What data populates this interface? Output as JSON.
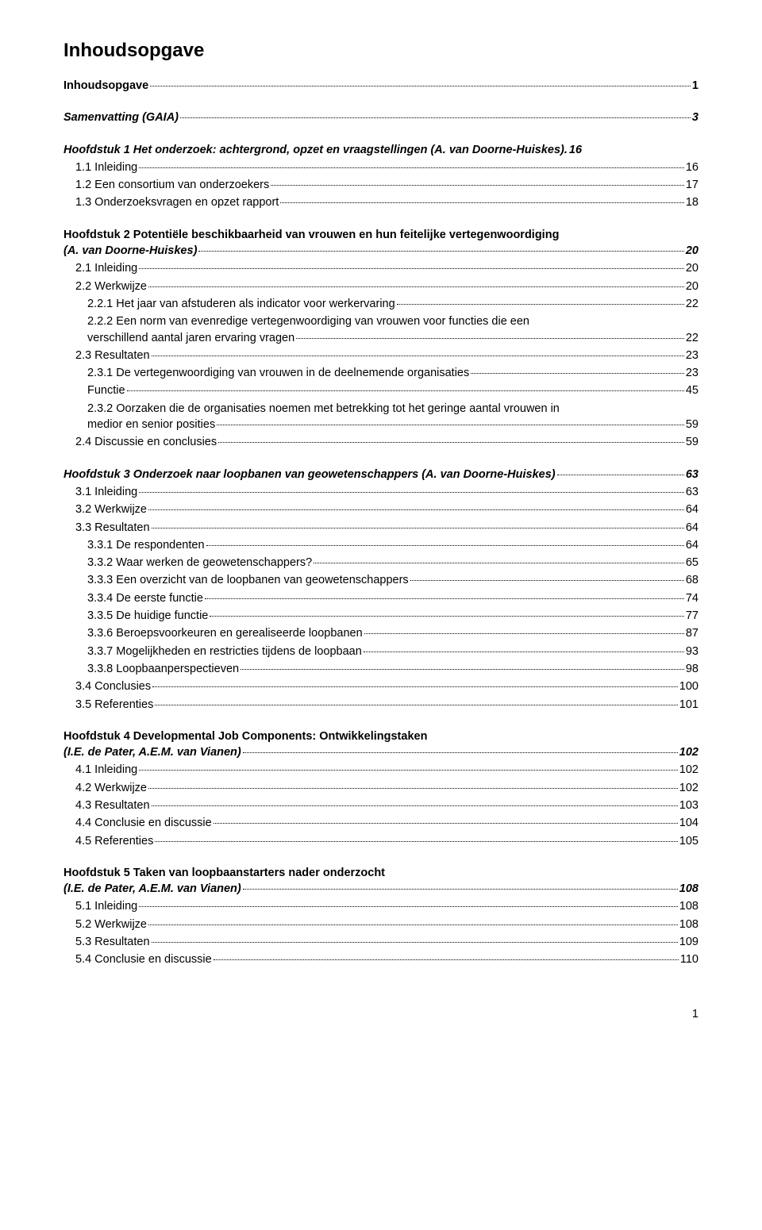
{
  "title": "Inhoudsopgave",
  "entries": [
    {
      "type": "line",
      "text": "Inhoudsopgave",
      "page": "1",
      "bold": true,
      "indent": 0
    },
    {
      "type": "gap"
    },
    {
      "type": "line",
      "text": "Samenvatting (GAIA)",
      "page": "3",
      "bold": true,
      "italic": true,
      "indent": 0
    },
    {
      "type": "gap"
    },
    {
      "type": "line",
      "text": "Hoofdstuk 1  Het onderzoek: achtergrond, opzet en vraagstellingen (A. van Doorne-Huiskes).",
      "page": "16",
      "bold": true,
      "italic": true,
      "indent": 0,
      "nodots": true
    },
    {
      "type": "line",
      "text": "1.1 Inleiding",
      "page": "16",
      "indent": 1
    },
    {
      "type": "line",
      "text": "1.2 Een consortium van onderzoekers",
      "page": "17",
      "indent": 1
    },
    {
      "type": "line",
      "text": "1.3 Onderzoeksvragen en opzet rapport",
      "page": "18",
      "indent": 1
    },
    {
      "type": "gap"
    },
    {
      "type": "text",
      "text": "Hoofdstuk 2  Potentiële beschikbaarheid van vrouwen en hun feitelijke vertegenwoordiging",
      "bold": true,
      "indent": 0
    },
    {
      "type": "line",
      "text": "(A. van Doorne-Huiskes)",
      "page": "20",
      "bold": true,
      "italic": true,
      "indent": 0
    },
    {
      "type": "line",
      "text": "2.1 Inleiding",
      "page": "20",
      "indent": 1
    },
    {
      "type": "line",
      "text": "2.2 Werkwijze",
      "page": "20",
      "indent": 1
    },
    {
      "type": "line",
      "text": "2.2.1 Het jaar van afstuderen als indicator voor werkervaring",
      "page": "22",
      "indent": 2
    },
    {
      "type": "text",
      "text": "2.2.2 Een norm van evenredige vertegenwoordiging van vrouwen voor functies die een",
      "indent": 2
    },
    {
      "type": "line",
      "text": "verschillend aantal jaren ervaring vragen",
      "page": "22",
      "indent": 2
    },
    {
      "type": "line",
      "text": "2.3 Resultaten",
      "page": "23",
      "indent": 1
    },
    {
      "type": "line",
      "text": "2.3.1 De vertegenwoordiging van vrouwen in de deelnemende organisaties",
      "page": "23",
      "indent": 2
    },
    {
      "type": "line",
      "text": "Functie",
      "page": "45",
      "indent": 2
    },
    {
      "type": "text",
      "text": "2.3.2 Oorzaken die de organisaties noemen met betrekking tot het geringe aantal vrouwen in",
      "indent": 2
    },
    {
      "type": "line",
      "text": "medior en senior posities",
      "page": "59",
      "indent": 2
    },
    {
      "type": "line",
      "text": "2.4 Discussie en conclusies",
      "page": "59",
      "indent": 1
    },
    {
      "type": "gap"
    },
    {
      "type": "line",
      "text": "Hoofdstuk 3  Onderzoek naar loopbanen van geowetenschappers (A. van Doorne-Huiskes)",
      "page": "63",
      "bold": true,
      "italic": true,
      "indent": 0
    },
    {
      "type": "line",
      "text": "3.1 Inleiding",
      "page": "63",
      "indent": 1
    },
    {
      "type": "line",
      "text": "3.2 Werkwijze",
      "page": "64",
      "indent": 1
    },
    {
      "type": "line",
      "text": "3.3 Resultaten",
      "page": "64",
      "indent": 1
    },
    {
      "type": "line",
      "text": "3.3.1 De respondenten",
      "page": "64",
      "indent": 2
    },
    {
      "type": "line",
      "text": "3.3.2 Waar werken de geowetenschappers?",
      "page": "65",
      "indent": 2
    },
    {
      "type": "line",
      "text": "3.3.3 Een overzicht van de loopbanen van geowetenschappers",
      "page": "68",
      "indent": 2
    },
    {
      "type": "line",
      "text": "3.3.4 De eerste functie",
      "page": "74",
      "indent": 2
    },
    {
      "type": "line",
      "text": "3.3.5 De huidige functie",
      "page": "77",
      "indent": 2
    },
    {
      "type": "line",
      "text": "3.3.6 Beroepsvoorkeuren en gerealiseerde loopbanen",
      "page": "87",
      "indent": 2
    },
    {
      "type": "line",
      "text": "3.3.7 Mogelijkheden en restricties tijdens de loopbaan",
      "page": "93",
      "indent": 2
    },
    {
      "type": "line",
      "text": "3.3.8 Loopbaanperspectieven",
      "page": "98",
      "indent": 2
    },
    {
      "type": "line",
      "text": "3.4 Conclusies",
      "page": "100",
      "indent": 1
    },
    {
      "type": "line",
      "text": "3.5 Referenties",
      "page": "101",
      "indent": 1
    },
    {
      "type": "gap"
    },
    {
      "type": "text",
      "text": "Hoofdstuk 4  Developmental Job Components: Ontwikkelingstaken",
      "bold": true,
      "indent": 0
    },
    {
      "type": "line",
      "text": "(I.E. de Pater, A.E.M. van Vianen)",
      "page": "102",
      "bold": true,
      "italic": true,
      "indent": 0
    },
    {
      "type": "line",
      "text": "4.1 Inleiding",
      "page": "102",
      "indent": 1
    },
    {
      "type": "line",
      "text": "4.2 Werkwijze",
      "page": "102",
      "indent": 1
    },
    {
      "type": "line",
      "text": "4.3 Resultaten",
      "page": "103",
      "indent": 1
    },
    {
      "type": "line",
      "text": "4.4 Conclusie en discussie",
      "page": "104",
      "indent": 1
    },
    {
      "type": "line",
      "text": "4.5 Referenties",
      "page": "105",
      "indent": 1
    },
    {
      "type": "gap"
    },
    {
      "type": "text",
      "text": "Hoofdstuk 5  Taken van loopbaanstarters nader onderzocht",
      "bold": true,
      "indent": 0
    },
    {
      "type": "line",
      "text": "(I.E. de Pater, A.E.M. van Vianen)",
      "page": "108",
      "bold": true,
      "italic": true,
      "indent": 0
    },
    {
      "type": "line",
      "text": "5.1 Inleiding",
      "page": "108",
      "indent": 1
    },
    {
      "type": "line",
      "text": "5.2 Werkwijze",
      "page": "108",
      "indent": 1
    },
    {
      "type": "line",
      "text": "5.3 Resultaten",
      "page": "109",
      "indent": 1
    },
    {
      "type": "line",
      "text": "5.4 Conclusie en discussie",
      "page": "110",
      "indent": 1
    }
  ],
  "pageNumber": "1"
}
